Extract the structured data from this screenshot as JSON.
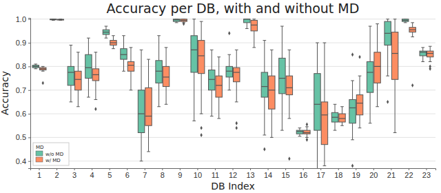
{
  "chart_data": {
    "type": "box",
    "title": "Accuracy per DB, with and without MD",
    "x_label": "DB Index",
    "y_label": "Accuracy",
    "categories": [
      "1",
      "2",
      "3",
      "4",
      "5",
      "6",
      "7",
      "8",
      "9",
      "10",
      "11",
      "12",
      "13",
      "14",
      "15",
      "16",
      "17",
      "18",
      "19",
      "20",
      "21",
      "22",
      "23"
    ],
    "ylim": [
      0.37,
      1.005
    ],
    "yticks": [
      0.4,
      0.5,
      0.6,
      0.7,
      0.8,
      0.9,
      {
        "value": 1,
        "label": "1.0"
      }
    ],
    "grid": true,
    "legend": "lower left",
    "legend_title": "MD",
    "series": [
      {
        "name": "w/o MD",
        "color": "#66c2a5",
        "q1": [
          0.795,
          0.997,
          0.72,
          0.75,
          0.935,
          0.83,
          0.52,
          0.73,
          0.99,
          0.775,
          0.7,
          0.755,
          0.985,
          0.67,
          0.685,
          0.515,
          0.53,
          0.565,
          0.56,
          0.69,
          0.89,
          0.99,
          0.845
        ],
        "median": [
          0.8,
          0.999,
          0.775,
          0.795,
          0.945,
          0.85,
          0.6,
          0.78,
          0.997,
          0.87,
          0.745,
          0.78,
          1.0,
          0.715,
          0.75,
          0.525,
          0.64,
          0.585,
          0.625,
          0.775,
          0.94,
          0.995,
          0.86
        ],
        "q3": [
          0.805,
          1.0,
          0.8,
          0.85,
          0.955,
          0.875,
          0.7,
          0.825,
          1.0,
          0.93,
          0.785,
          0.8,
          1.0,
          0.775,
          0.835,
          0.53,
          0.77,
          0.605,
          0.66,
          0.82,
          0.99,
          1.0,
          0.865
        ],
        "whisker_low": [
          0.79,
          0.995,
          0.65,
          0.67,
          0.92,
          0.78,
          0.4,
          0.63,
          0.985,
          0.57,
          0.59,
          0.7,
          0.96,
          0.51,
          0.53,
          0.505,
          0.36,
          0.53,
          0.49,
          0.56,
          0.76,
          0.985,
          0.82
        ],
        "whisker_high": [
          0.81,
          1.0,
          0.89,
          0.92,
          0.97,
          0.93,
          0.87,
          0.93,
          1.0,
          1.0,
          0.87,
          0.85,
          1.0,
          0.91,
          0.97,
          0.54,
          0.9,
          0.64,
          0.74,
          0.97,
          1.0,
          1.0,
          0.88
        ],
        "outliers": [
          [],
          [],
          [],
          [],
          [],
          [],
          [],
          [],
          [],
          [],
          [],
          [
            0.94
          ],
          [],
          [
            0.45
          ],
          [],
          [],
          [],
          [],
          [
            0.85,
            0.38
          ],
          [],
          [
            0.65
          ],
          [],
          []
        ]
      },
      {
        "name": "w/ MD",
        "color": "#fc8d62",
        "q1": [
          0.785,
          0.996,
          0.7,
          0.74,
          0.89,
          0.78,
          0.55,
          0.715,
          0.99,
          0.77,
          0.67,
          0.735,
          0.95,
          0.62,
          0.68,
          0.515,
          0.47,
          0.565,
          0.595,
          0.73,
          0.745,
          0.945,
          0.84
        ],
        "median": [
          0.79,
          0.998,
          0.745,
          0.765,
          0.9,
          0.805,
          0.59,
          0.755,
          0.995,
          0.845,
          0.72,
          0.775,
          0.975,
          0.7,
          0.71,
          0.52,
          0.595,
          0.58,
          0.645,
          0.8,
          0.855,
          0.955,
          0.855
        ],
        "q3": [
          0.795,
          0.999,
          0.78,
          0.79,
          0.91,
          0.82,
          0.71,
          0.8,
          1.0,
          0.91,
          0.76,
          0.795,
          0.995,
          0.76,
          0.76,
          0.53,
          0.65,
          0.6,
          0.68,
          0.86,
          0.945,
          0.965,
          0.865
        ],
        "whisker_low": [
          0.78,
          0.995,
          0.63,
          0.66,
          0.875,
          0.7,
          0.44,
          0.64,
          0.985,
          0.6,
          0.58,
          0.65,
          0.88,
          0.5,
          0.58,
          0.5,
          0.38,
          0.55,
          0.54,
          0.63,
          0.52,
          0.925,
          0.82
        ],
        "whisker_high": [
          0.8,
          1.0,
          0.86,
          0.86,
          0.93,
          0.88,
          0.83,
          0.88,
          1.0,
          0.99,
          0.84,
          0.87,
          1.0,
          0.87,
          0.87,
          0.545,
          0.9,
          0.63,
          0.76,
          0.98,
          1.0,
          0.985,
          0.885
        ],
        "outliers": [
          [
            0.73
          ],
          [],
          [],
          [
            0.62
          ],
          [],
          [],
          [],
          [],
          [
            0.98
          ],
          [
            0.51,
            0.54
          ],
          [],
          [
            0.56,
            0.54
          ],
          [],
          [],
          [
            0.41
          ],
          [
            0.49,
            0.555
          ],
          [],
          [],
          [
            0.84
          ],
          [],
          [],
          [
            0.72
          ],
          [
            0.8,
            0.79
          ]
        ]
      }
    ]
  }
}
